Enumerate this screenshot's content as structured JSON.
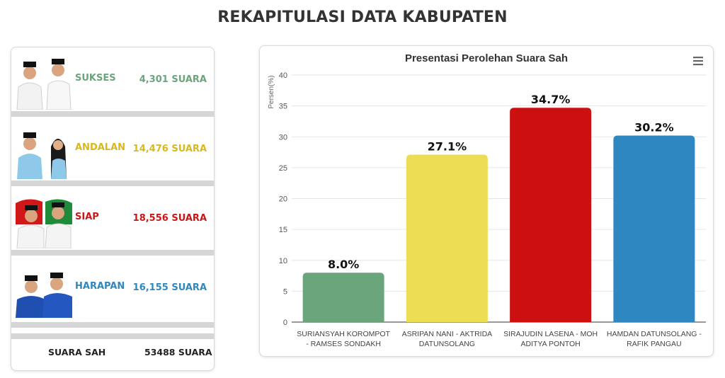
{
  "page": {
    "title": "REKAPITULASI DATA KABUPATEN"
  },
  "candidates": [
    {
      "name": "SUKSES",
      "votes": "4,301 SUARA",
      "color": "#6aa57b"
    },
    {
      "name": "ANDALAN",
      "votes": "14,476 SUARA",
      "color": "#d9b81c"
    },
    {
      "name": "SIAP",
      "votes": "18,556 SUARA",
      "color": "#cc1515"
    },
    {
      "name": "HARAPAN",
      "votes": "16,155 SUARA",
      "color": "#2f87c2"
    }
  ],
  "total": {
    "label": "SUARA SAH",
    "value": "53488 SUARA"
  },
  "menu_icon": "hamburger-menu-icon",
  "chart_data": {
    "type": "bar",
    "title": "Presentasi Perolehan Suara Sah",
    "ylabel": "Persen(%)",
    "xlabel": "",
    "ylim": [
      0,
      40
    ],
    "yticks": [
      0,
      5,
      10,
      15,
      20,
      25,
      30,
      35,
      40
    ],
    "grid": true,
    "categories": [
      [
        "SURIANSYAH KOROMPOT",
        "- RAMSES SONDAKH"
      ],
      [
        "ASRIPAN NANI - AKTRIDA",
        "DATUNSOLANG"
      ],
      [
        "SIRAJUDIN LASENA - MOH",
        "ADITYA PONTOH"
      ],
      [
        "HAMDAN DATUNSOLANG -",
        "RAFIK PANGAU"
      ]
    ],
    "values": [
      8.0,
      27.1,
      34.7,
      30.2
    ],
    "data_labels": [
      "8.0%",
      "27.1%",
      "34.7%",
      "30.2%"
    ],
    "colors": [
      "#6aa57b",
      "#eddd54",
      "#cc1010",
      "#2f87c2"
    ]
  }
}
